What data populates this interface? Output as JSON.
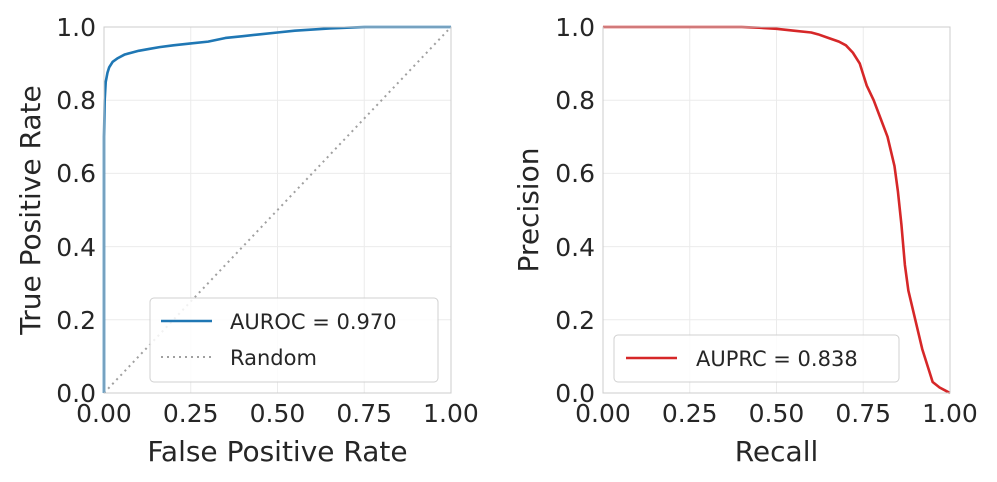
{
  "chart_data": [
    {
      "type": "line",
      "xlabel": "False Positive Rate",
      "ylabel": "True Positive Rate",
      "xlim": [
        0,
        1
      ],
      "ylim": [
        0,
        1
      ],
      "xticks": [
        "0.00",
        "0.25",
        "0.50",
        "0.75",
        "1.00"
      ],
      "yticks": [
        "0.0",
        "0.2",
        "0.4",
        "0.6",
        "0.8",
        "1.0"
      ],
      "grid": true,
      "legend_position": "bottom-right",
      "series": [
        {
          "name": "AUROC = 0.970",
          "color": "#1f77b4",
          "style": "solid",
          "x": [
            0,
            0,
            0.002,
            0.005,
            0.01,
            0.015,
            0.025,
            0.04,
            0.06,
            0.08,
            0.1,
            0.13,
            0.16,
            0.2,
            0.25,
            0.3,
            0.35,
            0.4,
            0.45,
            0.5,
            0.55,
            0.6,
            0.65,
            0.7,
            0.75,
            0.8,
            0.9,
            1.0
          ],
          "y": [
            0,
            0.7,
            0.8,
            0.85,
            0.875,
            0.89,
            0.905,
            0.915,
            0.925,
            0.93,
            0.935,
            0.94,
            0.945,
            0.95,
            0.955,
            0.96,
            0.97,
            0.975,
            0.98,
            0.985,
            0.99,
            0.993,
            0.996,
            0.998,
            1.0,
            1.0,
            1.0,
            1.0
          ]
        },
        {
          "name": "Random",
          "color": "#a0a0a0",
          "style": "dotted",
          "x": [
            0,
            1
          ],
          "y": [
            0,
            1
          ]
        }
      ]
    },
    {
      "type": "line",
      "xlabel": "Recall",
      "ylabel": "Precision",
      "xlim": [
        0,
        1
      ],
      "ylim": [
        0,
        1
      ],
      "xticks": [
        "0.00",
        "0.25",
        "0.50",
        "0.75",
        "1.00"
      ],
      "yticks": [
        "0.0",
        "0.2",
        "0.4",
        "0.6",
        "0.8",
        "1.0"
      ],
      "grid": true,
      "legend_position": "bottom-left",
      "series": [
        {
          "name": "AUPRC = 0.838",
          "color": "#d62728",
          "style": "solid",
          "x": [
            0,
            0.1,
            0.2,
            0.3,
            0.4,
            0.45,
            0.5,
            0.55,
            0.6,
            0.62,
            0.65,
            0.68,
            0.7,
            0.72,
            0.74,
            0.75,
            0.76,
            0.78,
            0.8,
            0.82,
            0.83,
            0.84,
            0.85,
            0.86,
            0.87,
            0.88,
            0.9,
            0.92,
            0.94,
            0.95,
            0.97,
            0.99,
            1.0
          ],
          "y": [
            1.0,
            1.0,
            1.0,
            1.0,
            1.0,
            0.998,
            0.995,
            0.99,
            0.985,
            0.98,
            0.97,
            0.96,
            0.95,
            0.93,
            0.9,
            0.87,
            0.84,
            0.8,
            0.75,
            0.7,
            0.66,
            0.62,
            0.55,
            0.46,
            0.35,
            0.28,
            0.2,
            0.12,
            0.06,
            0.03,
            0.015,
            0.005,
            0.0
          ]
        }
      ]
    }
  ]
}
